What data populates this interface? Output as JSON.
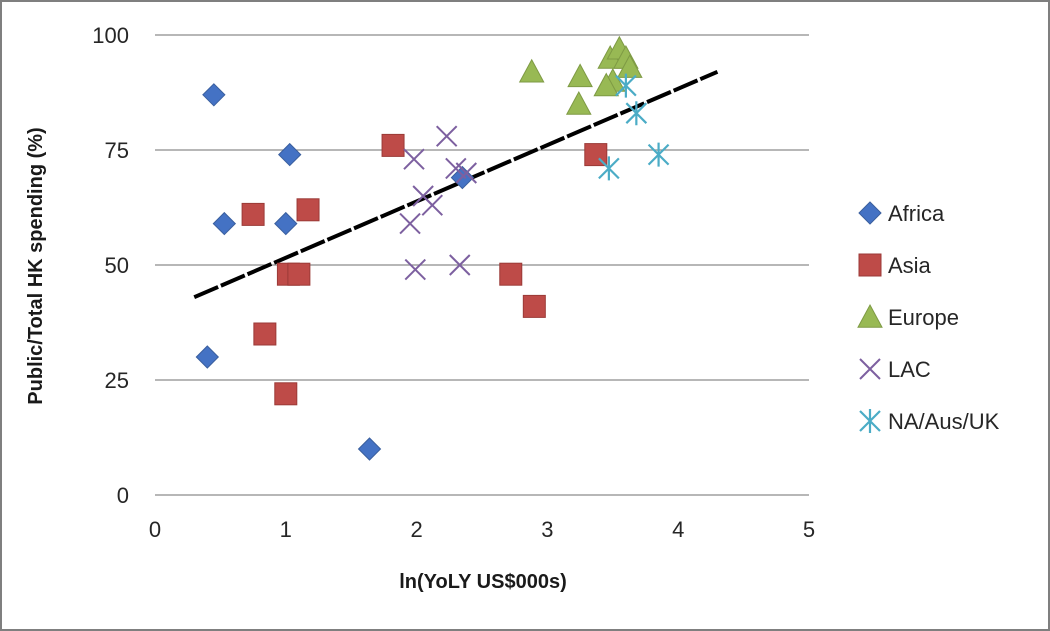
{
  "chart_data": {
    "type": "scatter",
    "title": "",
    "xlabel": "ln(YoLY US$000s)",
    "ylabel": "Public/Total HK spending (%)",
    "xlim": [
      0,
      5
    ],
    "ylim": [
      0,
      100
    ],
    "xticks": [
      0,
      1,
      2,
      3,
      4,
      5
    ],
    "yticks": [
      0,
      25,
      50,
      75,
      100
    ],
    "grid": "horizontal",
    "legend_position": "right",
    "trendline": {
      "style": "dashed",
      "color": "#000000",
      "points": [
        [
          0.3,
          43
        ],
        [
          4.3,
          92
        ]
      ]
    },
    "series": [
      {
        "name": "Africa",
        "marker": "diamond",
        "color": "#4472c4",
        "points": [
          [
            0.45,
            87
          ],
          [
            1.03,
            74
          ],
          [
            0.53,
            59
          ],
          [
            1.0,
            59
          ],
          [
            0.4,
            30
          ],
          [
            1.64,
            10
          ],
          [
            2.35,
            69
          ]
        ]
      },
      {
        "name": "Asia",
        "marker": "square",
        "color": "#be4b48",
        "points": [
          [
            1.82,
            76
          ],
          [
            0.75,
            61
          ],
          [
            1.17,
            62
          ],
          [
            1.02,
            48
          ],
          [
            1.1,
            48
          ],
          [
            0.84,
            35
          ],
          [
            1.0,
            22
          ],
          [
            2.72,
            48
          ],
          [
            2.9,
            41
          ],
          [
            3.37,
            74
          ]
        ]
      },
      {
        "name": "Europe",
        "marker": "triangle",
        "color": "#98b954",
        "points": [
          [
            2.88,
            92
          ],
          [
            3.25,
            91
          ],
          [
            3.48,
            95
          ],
          [
            3.55,
            97
          ],
          [
            3.6,
            95
          ],
          [
            3.63,
            93
          ],
          [
            3.5,
            90
          ],
          [
            3.45,
            89
          ],
          [
            3.24,
            85
          ]
        ]
      },
      {
        "name": "LAC",
        "marker": "x",
        "color": "#7d60a0",
        "points": [
          [
            1.98,
            73
          ],
          [
            2.23,
            78
          ],
          [
            2.3,
            71
          ],
          [
            2.38,
            70
          ],
          [
            2.05,
            65
          ],
          [
            2.12,
            63
          ],
          [
            1.95,
            59
          ],
          [
            1.99,
            49
          ],
          [
            2.33,
            50
          ]
        ]
      },
      {
        "name": "NA/Aus/UK",
        "marker": "asterisk",
        "color": "#4bacc6",
        "points": [
          [
            3.6,
            89
          ],
          [
            3.68,
            83
          ],
          [
            3.47,
            71
          ],
          [
            3.85,
            74
          ]
        ]
      }
    ]
  }
}
